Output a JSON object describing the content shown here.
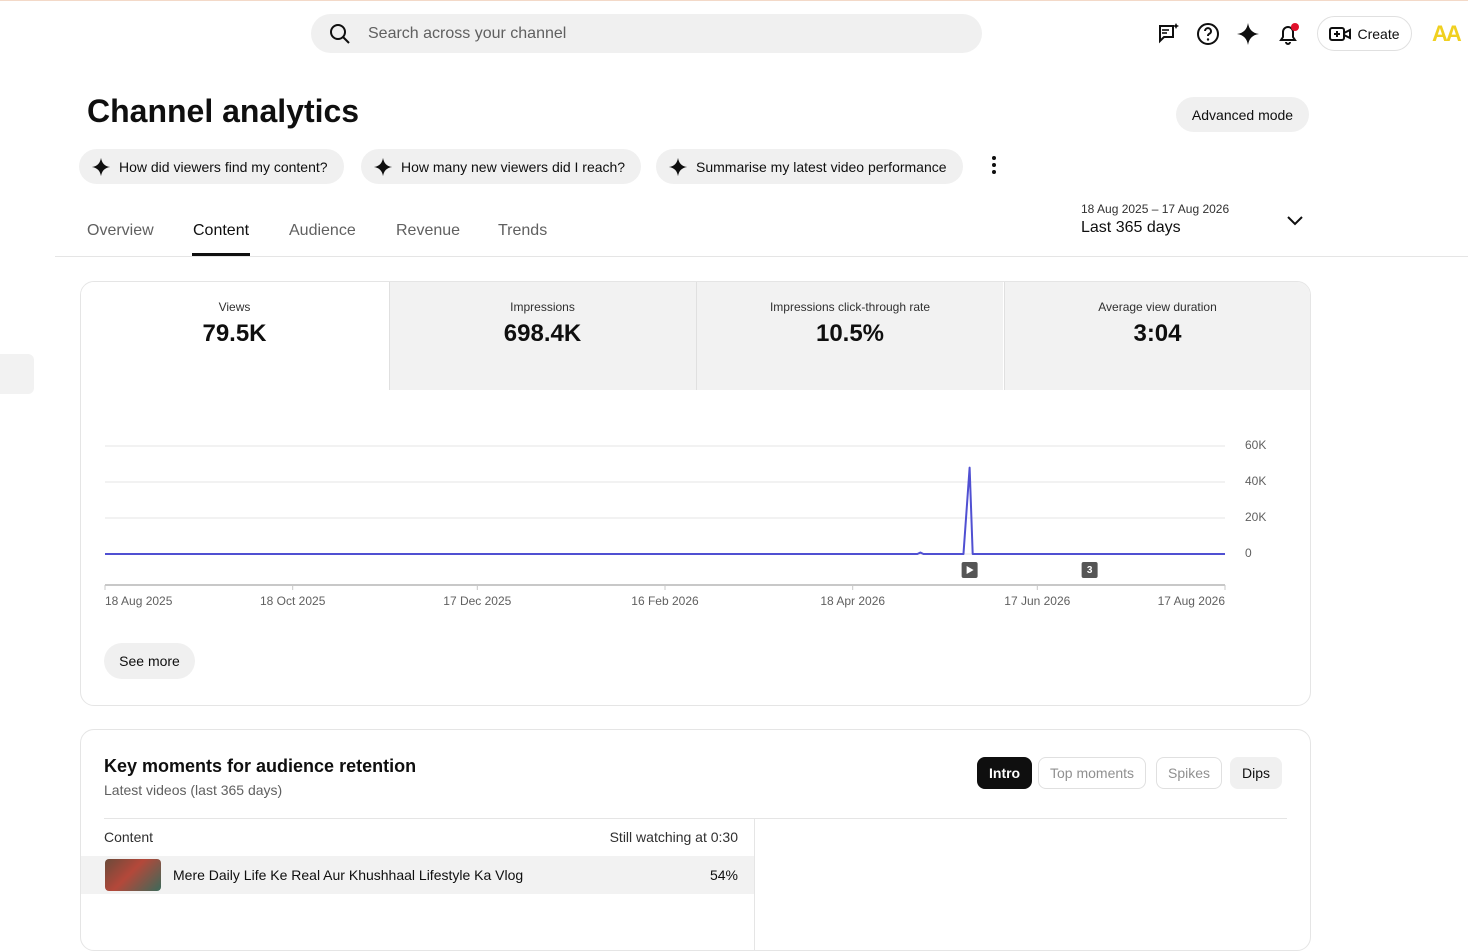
{
  "header": {
    "search_placeholder": "Search across your channel",
    "create": "Create",
    "avatar": "AA"
  },
  "page": {
    "title": "Channel analytics",
    "advanced_mode": "Advanced mode"
  },
  "suggestions": [
    "How did viewers find my content?",
    "How many new viewers did I reach?",
    "Summarise my latest video performance"
  ],
  "tabs": [
    "Overview",
    "Content",
    "Audience",
    "Revenue",
    "Trends"
  ],
  "active_tab": "Content",
  "date_range": {
    "dates": "18 Aug 2025 – 17 Aug 2026",
    "label": "Last 365 days"
  },
  "metrics": [
    {
      "label": "Views",
      "value": "79.5K"
    },
    {
      "label": "Impressions",
      "value": "698.4K"
    },
    {
      "label": "Impressions click-through rate",
      "value": "10.5%"
    },
    {
      "label": "Average view duration",
      "value": "3:04"
    }
  ],
  "chart_data": {
    "type": "line",
    "x": [
      "18 Aug 2025",
      "9 May 2026",
      "10 May 2026",
      "11 May 2026",
      "24 May 2026",
      "26 May 2026",
      "27 May 2026",
      "17 Aug 2026"
    ],
    "series": [
      {
        "name": "Views",
        "color": "#5050d2",
        "values": [
          0,
          0,
          800,
          0,
          0,
          48000,
          0,
          0
        ]
      }
    ],
    "xlim": [
      "18 Aug 2025",
      "17 Aug 2026"
    ],
    "xticks": [
      "18 Aug 2025",
      "18 Oct 2025",
      "17 Dec 2025",
      "16 Feb 2026",
      "18 Apr 2026",
      "17 Jun 2026",
      "17 Aug 2026"
    ],
    "ylim": [
      0,
      60000
    ],
    "yticks": [
      0,
      {
        "value": 20000,
        "label": "20K"
      },
      {
        "value": 40000,
        "label": "40K"
      },
      {
        "value": 60000,
        "label": "60K"
      }
    ],
    "grid": true,
    "annotations": [
      {
        "x": "26 May 2026"
      },
      {
        "x": "4 Jul 2026",
        "label": "3"
      }
    ]
  },
  "see_more": "See more",
  "retention": {
    "title": "Key moments for audience retention",
    "subtitle": "Latest videos (last 365 days)",
    "filters": [
      "Intro",
      "Top moments",
      "Spikes",
      "Dips"
    ],
    "active_filter": "Intro",
    "columns": [
      "Content",
      "Still watching at 0:30"
    ],
    "rows": [
      {
        "title": "Mere Daily Life Ke Real Aur Khushhaal Lifestyle Ka Vlog",
        "value": "54%"
      }
    ]
  }
}
